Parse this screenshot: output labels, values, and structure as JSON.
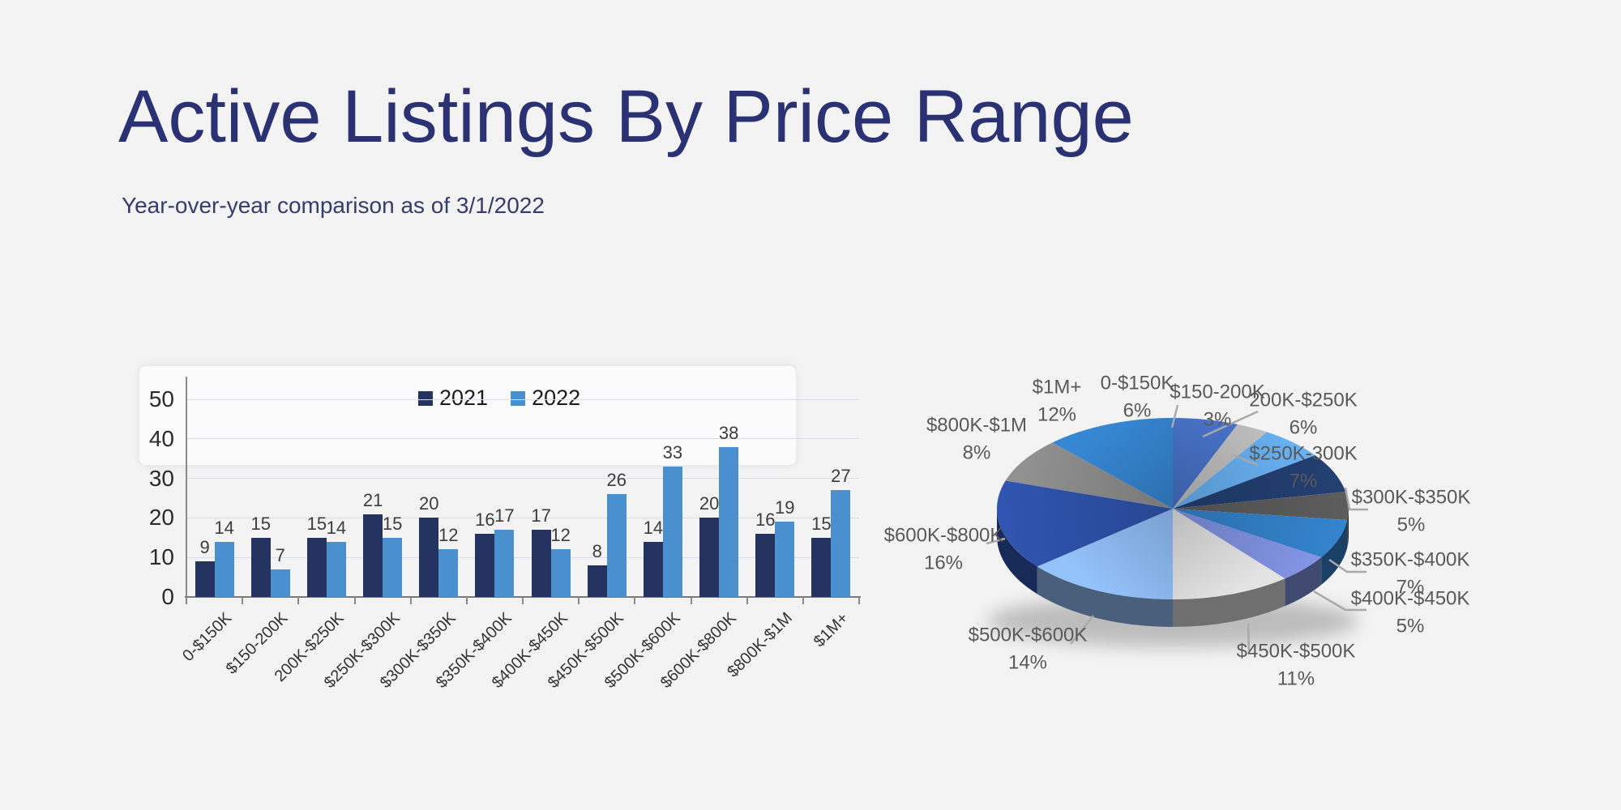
{
  "page": {
    "title": "Active Listings By Price Range",
    "subtitle": "Year-over-year comparison as of 3/1/2022"
  },
  "colors": {
    "background": "#f3f3f4",
    "title_text": "#2b3273",
    "series_2021": "#24335f",
    "series_2022": "#4a8fce",
    "gridline": "#d5ddee",
    "axis": "#8a8a8a",
    "bar_value_label": "#3d3d3d",
    "pie_label_text": "#595959",
    "leader_line": "#a9a9a9"
  },
  "chart_data": [
    {
      "type": "bar",
      "title": "",
      "categories": [
        "0-$150K",
        "$150-200K",
        "200K-$250K",
        "$250K-$300K",
        "$300K-$350K",
        "$350K-$400K",
        "$400K-$450K",
        "$450K-$500K",
        "$500K-$600K",
        "$600K-$800K",
        "$800K-$1M",
        "$1M+"
      ],
      "series": [
        {
          "name": "2021",
          "color": "#24335f",
          "values": [
            9,
            15,
            15,
            21,
            20,
            16,
            17,
            8,
            14,
            20,
            16,
            15
          ]
        },
        {
          "name": "2022",
          "color": "#4a8fce",
          "values": [
            14,
            7,
            14,
            15,
            12,
            17,
            12,
            26,
            33,
            38,
            19,
            27
          ]
        }
      ],
      "ylabel": "",
      "xlabel": "",
      "ylim": [
        0,
        50
      ],
      "yticks": [
        0,
        10,
        20,
        30,
        40,
        50
      ],
      "grid": true,
      "legend_position": "top-center",
      "data_labels": true
    },
    {
      "type": "pie",
      "style": "3d",
      "start_angle_deg": 0,
      "direction": "clockwise",
      "labels": [
        "0-$150K",
        "$150-200K",
        "200K-$250K",
        "$250K-300K",
        "$300K-$350K",
        "$350K-$400K",
        "$400K-$450K",
        "$450K-$500K",
        "$500K-$600K",
        "$600K-$800K",
        "$800K-$1M",
        "$1M+"
      ],
      "values_pct": [
        6,
        3,
        6,
        7,
        5,
        7,
        5,
        11,
        14,
        16,
        8,
        12
      ],
      "pct_suffix": "%",
      "colors": [
        "#3e63ad",
        "#a6a6a6",
        "#5b9bd5",
        "#1f3864",
        "#525252",
        "#2e74b5",
        "#7282c8",
        "#c7c7c7",
        "#82aadc",
        "#2a4b9b",
        "#7f7f7f",
        "#2f76b9"
      ]
    }
  ]
}
